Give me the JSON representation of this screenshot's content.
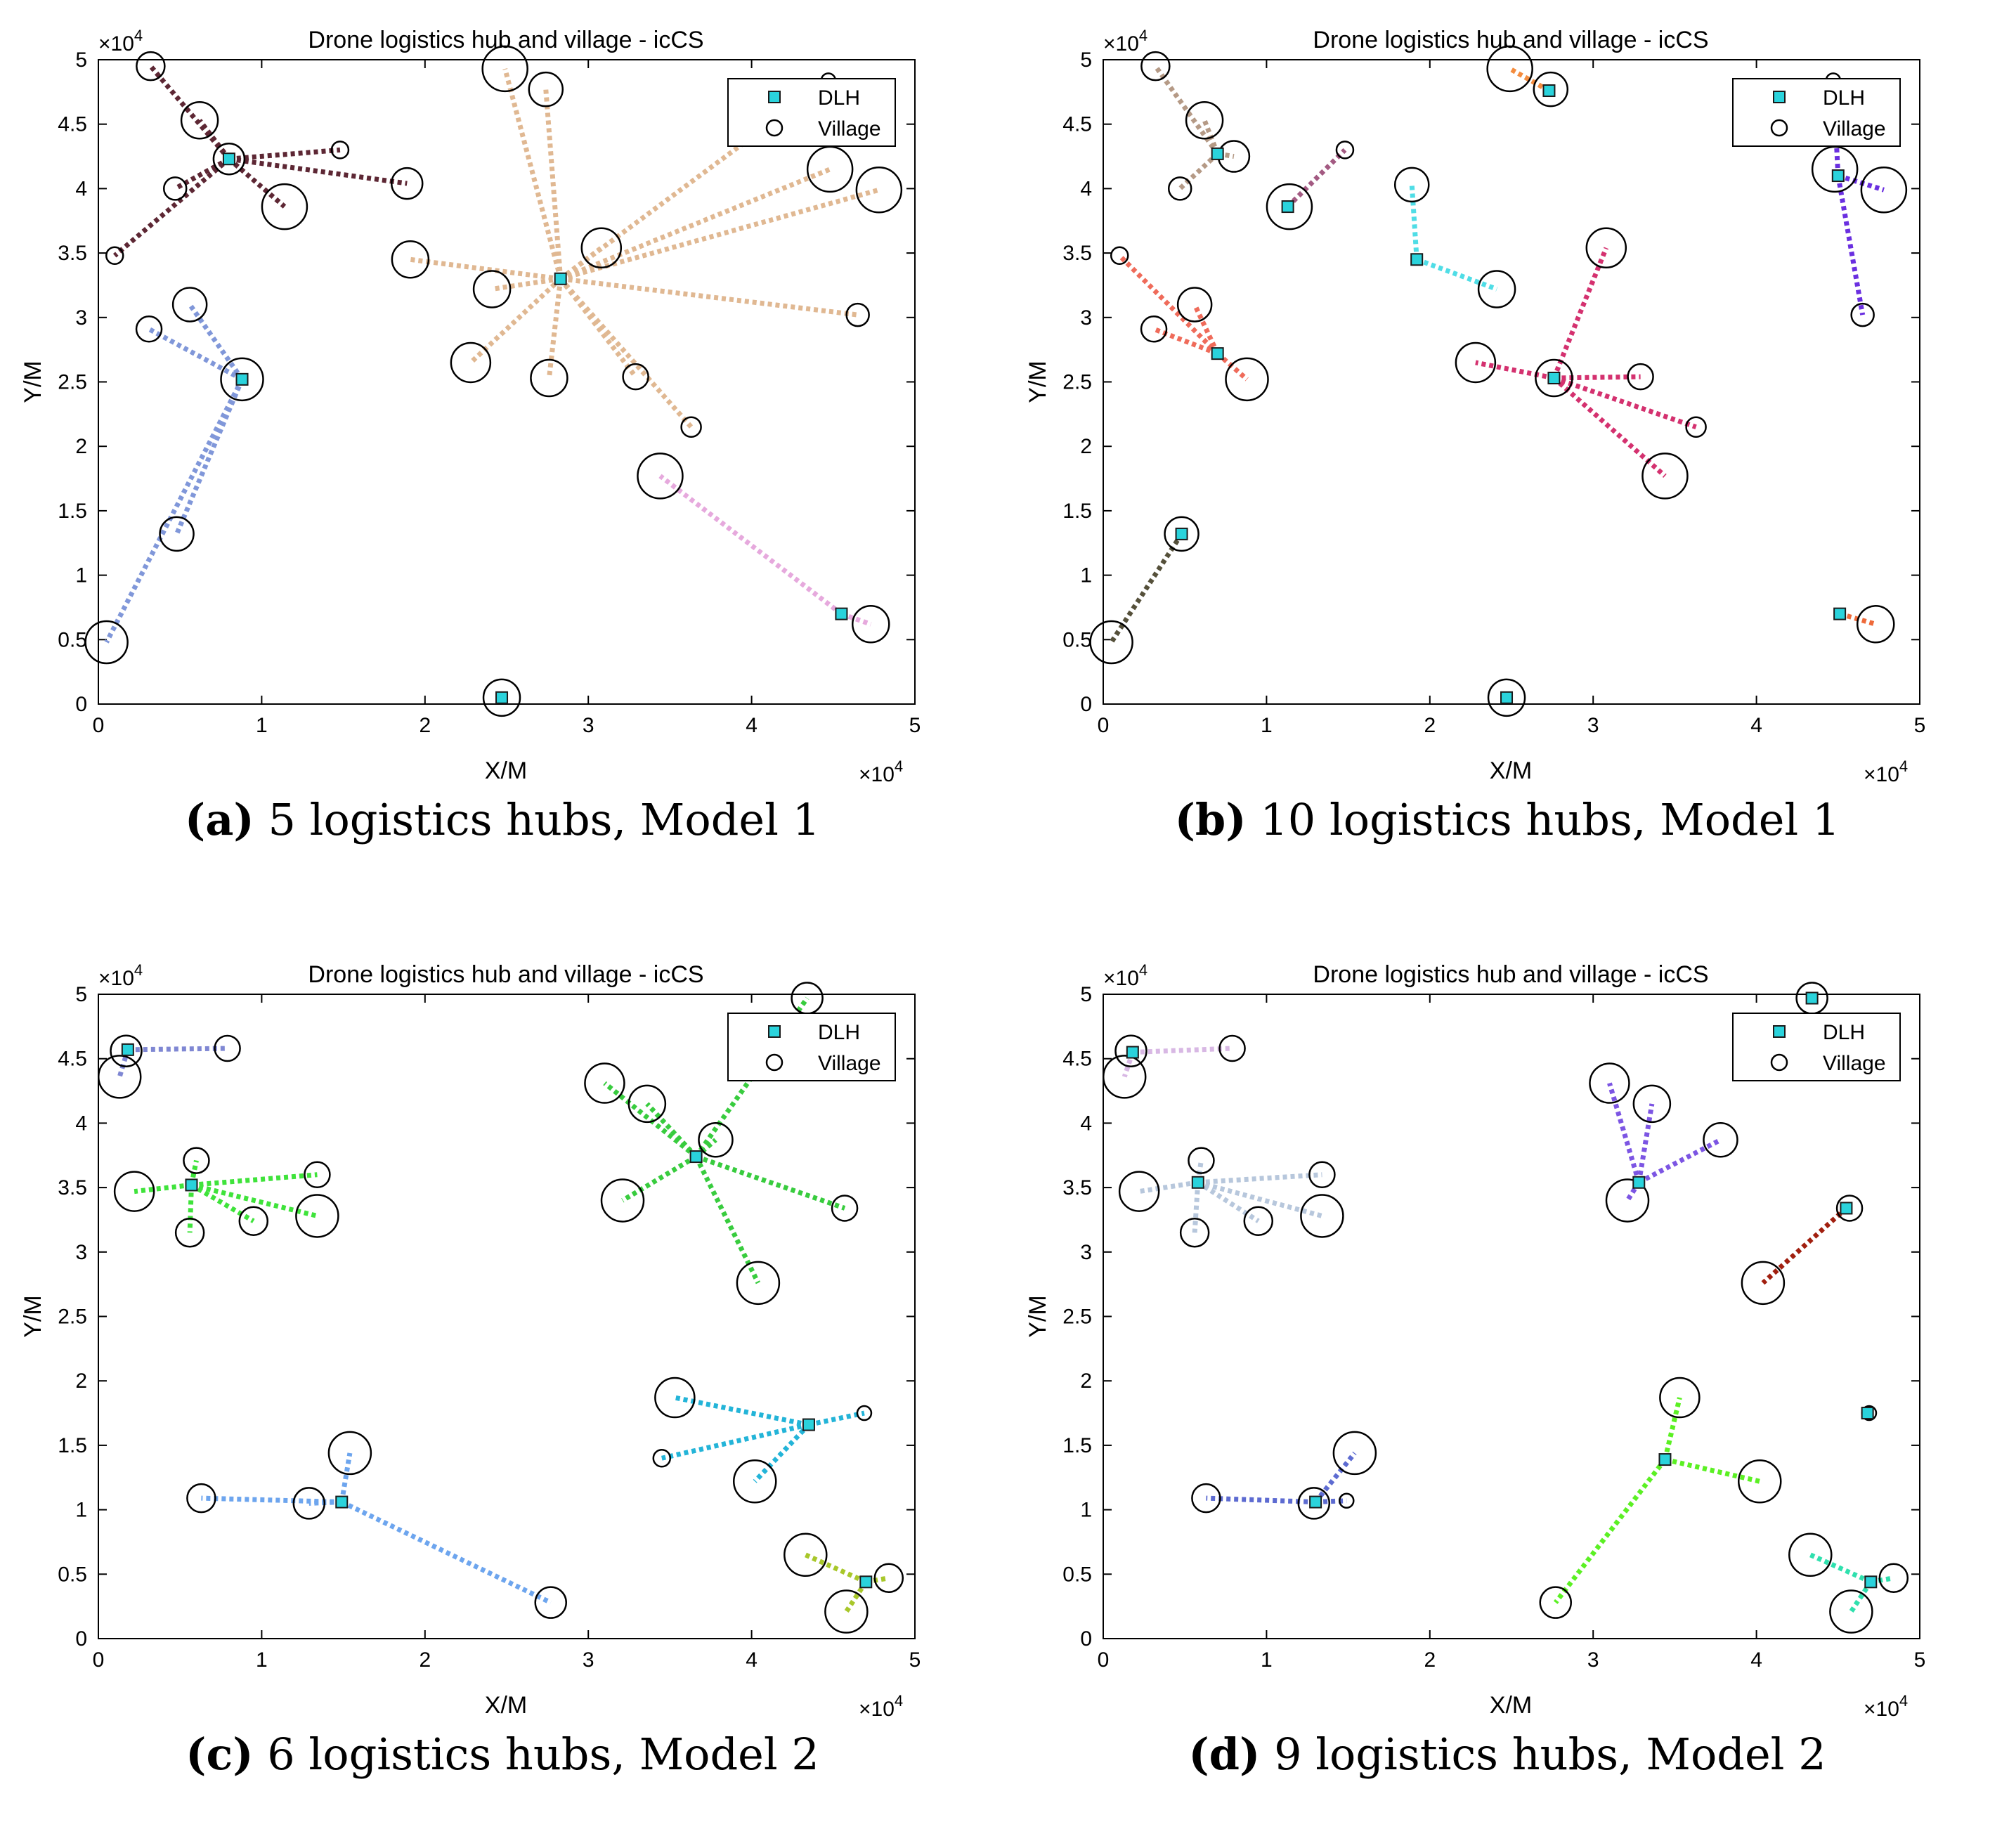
{
  "figure": {
    "colors": {
      "dlh_fill": "#2ad3dc",
      "axis": "#000000",
      "village_stroke": "#000000"
    }
  },
  "chart_data": [
    {
      "type": "scatter",
      "panel_label": "(a)",
      "caption": "5 logistics hubs, Model 1",
      "title": "Drone logistics hub and village - icCS",
      "xlabel": "X/M",
      "ylabel": "Y/M",
      "x_exponent": "×10",
      "y_exponent": "×10",
      "exponent_power": "4",
      "xlim": [
        0,
        50000
      ],
      "ylim": [
        0,
        50000
      ],
      "x_ticks": [
        0,
        10000,
        20000,
        30000,
        40000,
        50000
      ],
      "x_tick_labels": [
        "0",
        "1",
        "2",
        "3",
        "4",
        "5"
      ],
      "y_ticks": [
        0,
        5000,
        10000,
        15000,
        20000,
        25000,
        30000,
        35000,
        40000,
        45000,
        50000
      ],
      "y_tick_labels": [
        "0",
        "0.5",
        "1",
        "1.5",
        "2",
        "2.5",
        "3",
        "3.5",
        "4",
        "4.5",
        "5"
      ],
      "legend": {
        "entries": [
          "DLH",
          "Village"
        ],
        "position": "top-right"
      },
      "villages": [
        [
          3200,
          49500,
          10
        ],
        [
          6200,
          45300,
          13
        ],
        [
          8000,
          42300,
          11
        ],
        [
          11400,
          38600,
          16
        ],
        [
          18900,
          40400,
          11
        ],
        [
          14800,
          43000,
          6
        ],
        [
          4700,
          40000,
          8
        ],
        [
          1000,
          34800,
          6
        ],
        [
          5600,
          31000,
          12
        ],
        [
          3100,
          29100,
          9
        ],
        [
          8800,
          25200,
          15
        ],
        [
          4800,
          13200,
          12
        ],
        [
          500,
          4800,
          15
        ],
        [
          24900,
          49300,
          16
        ],
        [
          27400,
          47700,
          12
        ],
        [
          19100,
          34500,
          13
        ],
        [
          30800,
          35400,
          14
        ],
        [
          24100,
          32200,
          13
        ],
        [
          22800,
          26500,
          14
        ],
        [
          27600,
          25300,
          13
        ],
        [
          32900,
          25400,
          9
        ],
        [
          36300,
          21500,
          7
        ],
        [
          46500,
          30200,
          8
        ],
        [
          47800,
          39900,
          16
        ],
        [
          44800,
          41500,
          16
        ],
        [
          44700,
          48400,
          5
        ],
        [
          34400,
          17700,
          16
        ],
        [
          47300,
          6200,
          13
        ],
        [
          24700,
          500,
          13
        ]
      ],
      "hubs": [
        {
          "x": 8000,
          "y": 42300,
          "color": "#5d2734",
          "villages": [
            0,
            1,
            3,
            4,
            5,
            6,
            7
          ]
        },
        {
          "x": 8800,
          "y": 25200,
          "color": "#8097d9",
          "villages": [
            8,
            9,
            11,
            12
          ]
        },
        {
          "x": 28300,
          "y": 33000,
          "color": "#e0b892",
          "villages": [
            13,
            14,
            15,
            16,
            17,
            18,
            19,
            20,
            21,
            22,
            23,
            24,
            25
          ]
        },
        {
          "x": 45500,
          "y": 7000,
          "color": "#e6a9dd",
          "villages": [
            26,
            27
          ]
        },
        {
          "x": 24700,
          "y": 500,
          "color": "#8aa7c9",
          "villages": []
        }
      ]
    },
    {
      "type": "scatter",
      "panel_label": "(b)",
      "caption": "10 logistics hubs, Model 1",
      "title": "Drone logistics hub and village - icCS",
      "xlabel": "X/M",
      "ylabel": "Y/M",
      "x_exponent": "×10",
      "y_exponent": "×10",
      "exponent_power": "4",
      "xlim": [
        0,
        50000
      ],
      "ylim": [
        0,
        50000
      ],
      "x_ticks": [
        0,
        10000,
        20000,
        30000,
        40000,
        50000
      ],
      "x_tick_labels": [
        "0",
        "1",
        "2",
        "3",
        "4",
        "5"
      ],
      "y_ticks": [
        0,
        5000,
        10000,
        15000,
        20000,
        25000,
        30000,
        35000,
        40000,
        45000,
        50000
      ],
      "y_tick_labels": [
        "0",
        "0.5",
        "1",
        "1.5",
        "2",
        "2.5",
        "3",
        "3.5",
        "4",
        "4.5",
        "5"
      ],
      "legend": {
        "entries": [
          "DLH",
          "Village"
        ],
        "position": "top-right"
      },
      "villages": [
        [
          3200,
          49500,
          10
        ],
        [
          6200,
          45300,
          13
        ],
        [
          8000,
          42500,
          11
        ],
        [
          4700,
          40000,
          8
        ],
        [
          11400,
          38600,
          16
        ],
        [
          14800,
          43000,
          6
        ],
        [
          1000,
          34800,
          6
        ],
        [
          5600,
          31000,
          12
        ],
        [
          3100,
          29100,
          9
        ],
        [
          8800,
          25200,
          15
        ],
        [
          18900,
          40300,
          12
        ],
        [
          24100,
          32200,
          13
        ],
        [
          22800,
          26500,
          14
        ],
        [
          30800,
          35400,
          14
        ],
        [
          32900,
          25400,
          9
        ],
        [
          36300,
          21500,
          7
        ],
        [
          34400,
          17700,
          16
        ],
        [
          24900,
          49300,
          16
        ],
        [
          27400,
          47700,
          12
        ],
        [
          47800,
          39900,
          16
        ],
        [
          46500,
          30200,
          8
        ],
        [
          44800,
          41500,
          16
        ],
        [
          44700,
          48400,
          5
        ],
        [
          500,
          4800,
          15
        ],
        [
          47300,
          6200,
          13
        ],
        [
          4800,
          13200,
          12
        ],
        [
          24700,
          500,
          13
        ],
        [
          27600,
          25300,
          13
        ]
      ],
      "hubs": [
        {
          "x": 7000,
          "y": 42700,
          "color": "#b59a86",
          "villages": [
            0,
            1,
            2,
            3
          ]
        },
        {
          "x": 11300,
          "y": 38600,
          "color": "#a35a82",
          "villages": [
            4,
            5
          ]
        },
        {
          "x": 7000,
          "y": 27200,
          "color": "#ef6b5a",
          "villages": [
            6,
            7,
            8,
            9
          ]
        },
        {
          "x": 19200,
          "y": 34500,
          "color": "#4fdde6",
          "villages": [
            10,
            11
          ]
        },
        {
          "x": 27600,
          "y": 25300,
          "color": "#d4316f",
          "villages": [
            12,
            13,
            14,
            15,
            16
          ]
        },
        {
          "x": 27300,
          "y": 47600,
          "color": "#f48c3e",
          "villages": [
            17,
            18
          ]
        },
        {
          "x": 45000,
          "y": 41000,
          "color": "#6a2fe0",
          "villages": [
            19,
            20,
            21,
            22
          ]
        },
        {
          "x": 4800,
          "y": 13200,
          "color": "#55503a",
          "villages": [
            23,
            25
          ]
        },
        {
          "x": 45100,
          "y": 7000,
          "color": "#ee6a3a",
          "villages": [
            24
          ]
        },
        {
          "x": 24700,
          "y": 500,
          "color": "#8aa7c9",
          "villages": []
        }
      ]
    },
    {
      "type": "scatter",
      "panel_label": "(c)",
      "caption": "6 logistics hubs, Model 2",
      "title": "Drone logistics hub and village - icCS",
      "xlabel": "X/M",
      "ylabel": "Y/M",
      "x_exponent": "×10",
      "y_exponent": "×10",
      "exponent_power": "4",
      "xlim": [
        0,
        50000
      ],
      "ylim": [
        0,
        50000
      ],
      "x_ticks": [
        0,
        10000,
        20000,
        30000,
        40000,
        50000
      ],
      "x_tick_labels": [
        "0",
        "1",
        "2",
        "3",
        "4",
        "5"
      ],
      "y_ticks": [
        0,
        5000,
        10000,
        15000,
        20000,
        25000,
        30000,
        35000,
        40000,
        45000,
        50000
      ],
      "y_tick_labels": [
        "0",
        "0.5",
        "1",
        "1.5",
        "2",
        "2.5",
        "3",
        "3.5",
        "4",
        "4.5",
        "5"
      ],
      "legend": {
        "entries": [
          "DLH",
          "Village"
        ],
        "position": "top-right"
      },
      "villages": [
        [
          1700,
          45600,
          11
        ],
        [
          7900,
          45800,
          9
        ],
        [
          1300,
          43600,
          15
        ],
        [
          6000,
          37100,
          9
        ],
        [
          2200,
          34700,
          14
        ],
        [
          13400,
          36000,
          9
        ],
        [
          13400,
          32800,
          15
        ],
        [
          9500,
          32400,
          10
        ],
        [
          5600,
          31500,
          10
        ],
        [
          43400,
          49700,
          11
        ],
        [
          31000,
          43100,
          14
        ],
        [
          33600,
          41500,
          13
        ],
        [
          37800,
          38700,
          12
        ],
        [
          32100,
          34000,
          15
        ],
        [
          45700,
          33400,
          9
        ],
        [
          40400,
          27600,
          15
        ],
        [
          35300,
          18700,
          14
        ],
        [
          46900,
          17500,
          5
        ],
        [
          34500,
          14000,
          6
        ],
        [
          40200,
          12200,
          15
        ],
        [
          15400,
          14400,
          15
        ],
        [
          6300,
          10900,
          10
        ],
        [
          12900,
          10500,
          11
        ],
        [
          27700,
          2800,
          11
        ],
        [
          43300,
          6500,
          15
        ],
        [
          48400,
          4700,
          10
        ],
        [
          45800,
          2100,
          15
        ]
      ],
      "hubs": [
        {
          "x": 1800,
          "y": 45700,
          "color": "#7f87d3",
          "villages": [
            0,
            1,
            2
          ]
        },
        {
          "x": 5700,
          "y": 35200,
          "color": "#3fe33b",
          "villages": [
            3,
            4,
            5,
            6,
            7,
            8
          ]
        },
        {
          "x": 36600,
          "y": 37400,
          "color": "#38cc3e",
          "villages": [
            9,
            10,
            11,
            12,
            13,
            14,
            15
          ]
        },
        {
          "x": 43500,
          "y": 16600,
          "color": "#23b4d8",
          "villages": [
            16,
            17,
            18,
            19
          ]
        },
        {
          "x": 14900,
          "y": 10600,
          "color": "#6da5ee",
          "villages": [
            20,
            21,
            22,
            23
          ]
        },
        {
          "x": 47000,
          "y": 4400,
          "color": "#a8c72a",
          "villages": [
            24,
            25,
            26
          ]
        }
      ]
    },
    {
      "type": "scatter",
      "panel_label": "(d)",
      "caption": "9 logistics hubs, Model 2",
      "title": "Drone logistics hub and village - icCS",
      "xlabel": "X/M",
      "ylabel": "Y/M",
      "x_exponent": "×10",
      "y_exponent": "×10",
      "exponent_power": "4",
      "xlim": [
        0,
        50000
      ],
      "ylim": [
        0,
        50000
      ],
      "x_ticks": [
        0,
        10000,
        20000,
        30000,
        40000,
        50000
      ],
      "x_tick_labels": [
        "0",
        "1",
        "2",
        "3",
        "4",
        "5"
      ],
      "y_ticks": [
        0,
        5000,
        10000,
        15000,
        20000,
        25000,
        30000,
        35000,
        40000,
        45000,
        50000
      ],
      "y_tick_labels": [
        "0",
        "0.5",
        "1",
        "1.5",
        "2",
        "2.5",
        "3",
        "3.5",
        "4",
        "4.5",
        "5"
      ],
      "legend": {
        "entries": [
          "DLH",
          "Village"
        ],
        "position": "top-right"
      },
      "villages": [
        [
          1700,
          45600,
          11
        ],
        [
          7900,
          45800,
          9
        ],
        [
          1300,
          43600,
          15
        ],
        [
          6000,
          37100,
          9
        ],
        [
          2200,
          34700,
          14
        ],
        [
          13400,
          36000,
          9
        ],
        [
          13400,
          32800,
          15
        ],
        [
          9500,
          32400,
          10
        ],
        [
          5600,
          31500,
          10
        ],
        [
          31000,
          43100,
          14
        ],
        [
          33600,
          41500,
          13
        ],
        [
          37800,
          38700,
          12
        ],
        [
          32100,
          34000,
          15
        ],
        [
          43400,
          49700,
          11
        ],
        [
          45700,
          33400,
          9
        ],
        [
          40400,
          27600,
          15
        ],
        [
          35300,
          18700,
          14
        ],
        [
          40200,
          12200,
          15
        ],
        [
          27700,
          2800,
          11
        ],
        [
          15400,
          14400,
          15
        ],
        [
          6300,
          10900,
          10
        ],
        [
          12900,
          10500,
          11
        ],
        [
          14900,
          10700,
          5
        ],
        [
          43300,
          6500,
          15
        ],
        [
          48400,
          4700,
          10
        ],
        [
          45800,
          2100,
          15
        ],
        [
          46900,
          17500,
          5
        ]
      ],
      "hubs": [
        {
          "x": 1800,
          "y": 45500,
          "color": "#d8b8e4",
          "villages": [
            0,
            1,
            2
          ]
        },
        {
          "x": 5800,
          "y": 35400,
          "color": "#b7c7dc",
          "villages": [
            3,
            4,
            5,
            6,
            7,
            8
          ]
        },
        {
          "x": 32800,
          "y": 35400,
          "color": "#7c55e3",
          "villages": [
            9,
            10,
            11,
            12
          ]
        },
        {
          "x": 43400,
          "y": 49700,
          "color": "#2ad3dc",
          "villages": [
            13
          ]
        },
        {
          "x": 45500,
          "y": 33400,
          "color": "#a11f0f",
          "villages": [
            14,
            15
          ]
        },
        {
          "x": 34400,
          "y": 13900,
          "color": "#5bf023",
          "villages": [
            16,
            17,
            18
          ]
        },
        {
          "x": 13000,
          "y": 10600,
          "color": "#5d6bd1",
          "villages": [
            19,
            20,
            21,
            22
          ]
        },
        {
          "x": 47000,
          "y": 4400,
          "color": "#2fe0ae",
          "villages": [
            23,
            24,
            25
          ]
        },
        {
          "x": 46800,
          "y": 17500,
          "color": "#2a8c6a",
          "villages": [
            26
          ]
        }
      ]
    }
  ]
}
